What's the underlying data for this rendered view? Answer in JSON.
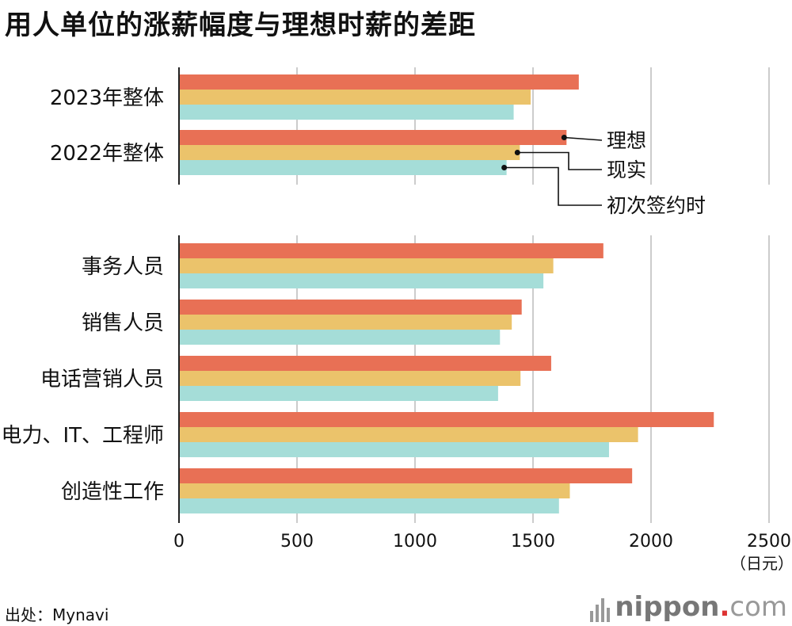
{
  "title": "用人单位的涨薪幅度与理想时薪的差距",
  "source": "出处：Mynavi",
  "logo": {
    "main": "nippon",
    "dot": ".",
    "tld": "com"
  },
  "colors": {
    "ideal": "#E87055",
    "actual": "#EBC36B",
    "initial": "#A5DDD8",
    "grid": "#cccccc",
    "axis": "#222222"
  },
  "chart_data": {
    "type": "bar",
    "orientation": "horizontal",
    "unit": "（日元）",
    "xlim": [
      0,
      2500
    ],
    "xticks": [
      0,
      500,
      1000,
      1500,
      2000,
      2500
    ],
    "grid": true,
    "legend": {
      "placement": "inline-right",
      "entries": [
        "理想",
        "现实",
        "初次签约时"
      ]
    },
    "groups": [
      {
        "categories": [
          "2023年整体",
          "2022年整体"
        ]
      },
      {
        "categories": [
          "事务人员",
          "销售人员",
          "电话营销人员",
          "电力、IT、工程师",
          "创造性工作"
        ]
      }
    ],
    "categories": [
      "2023年整体",
      "2022年整体",
      "事务人员",
      "销售人员",
      "电话营销人员",
      "电力、IT、工程师",
      "创造性工作"
    ],
    "series": [
      {
        "name": "理想",
        "values": [
          1694,
          1642,
          1798,
          1452,
          1577,
          2266,
          1920
        ]
      },
      {
        "name": "现实",
        "values": [
          1490,
          1444,
          1586,
          1410,
          1447,
          1945,
          1656
        ]
      },
      {
        "name": "初次签约时",
        "values": [
          1418,
          1388,
          1544,
          1360,
          1352,
          1822,
          1610
        ]
      }
    ]
  }
}
